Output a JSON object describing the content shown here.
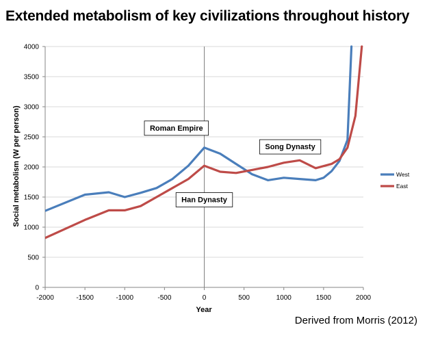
{
  "chart_data": {
    "type": "line",
    "title": "Extended metabolism of key civilizations throughout history",
    "source": "Derived from Morris (2012)",
    "xlabel": "Year",
    "ylabel": "Social metabolism (W per person)",
    "xlim": [
      -2000,
      2000
    ],
    "ylim": [
      0,
      4000
    ],
    "xticks": [
      -2000,
      -1500,
      -1000,
      -500,
      0,
      500,
      1000,
      1500,
      2000
    ],
    "yticks": [
      0,
      500,
      1000,
      1500,
      2000,
      2500,
      3000,
      3500,
      4000
    ],
    "grid": "horizontal",
    "reference_line_x": 0,
    "legend_position": "right",
    "series": [
      {
        "name": "West",
        "color": "#4a7ebb",
        "points": [
          [
            -2000,
            1270
          ],
          [
            -1500,
            1540
          ],
          [
            -1200,
            1580
          ],
          [
            -1000,
            1500
          ],
          [
            -800,
            1570
          ],
          [
            -600,
            1650
          ],
          [
            -400,
            1800
          ],
          [
            -200,
            2020
          ],
          [
            0,
            2320
          ],
          [
            200,
            2220
          ],
          [
            400,
            2050
          ],
          [
            600,
            1880
          ],
          [
            800,
            1780
          ],
          [
            1000,
            1820
          ],
          [
            1200,
            1800
          ],
          [
            1400,
            1780
          ],
          [
            1500,
            1820
          ],
          [
            1600,
            1930
          ],
          [
            1700,
            2100
          ],
          [
            1800,
            2450
          ],
          [
            1850,
            4000
          ]
        ]
      },
      {
        "name": "East",
        "color": "#be4b48",
        "points": [
          [
            -2000,
            820
          ],
          [
            -1500,
            1120
          ],
          [
            -1200,
            1280
          ],
          [
            -1000,
            1280
          ],
          [
            -800,
            1350
          ],
          [
            -600,
            1500
          ],
          [
            -400,
            1650
          ],
          [
            -200,
            1800
          ],
          [
            0,
            2020
          ],
          [
            200,
            1920
          ],
          [
            400,
            1900
          ],
          [
            600,
            1950
          ],
          [
            800,
            2000
          ],
          [
            1000,
            2070
          ],
          [
            1200,
            2110
          ],
          [
            1400,
            1980
          ],
          [
            1600,
            2050
          ],
          [
            1700,
            2130
          ],
          [
            1800,
            2320
          ],
          [
            1900,
            2850
          ],
          [
            1980,
            4000
          ]
        ]
      }
    ],
    "annotations": [
      {
        "text": "Roman Empire",
        "x": -350,
        "y": 2650
      },
      {
        "text": "Song Dynasty",
        "x": 1080,
        "y": 2340
      },
      {
        "text": "Han Dynasty",
        "x": 0,
        "y": 1460
      }
    ]
  }
}
